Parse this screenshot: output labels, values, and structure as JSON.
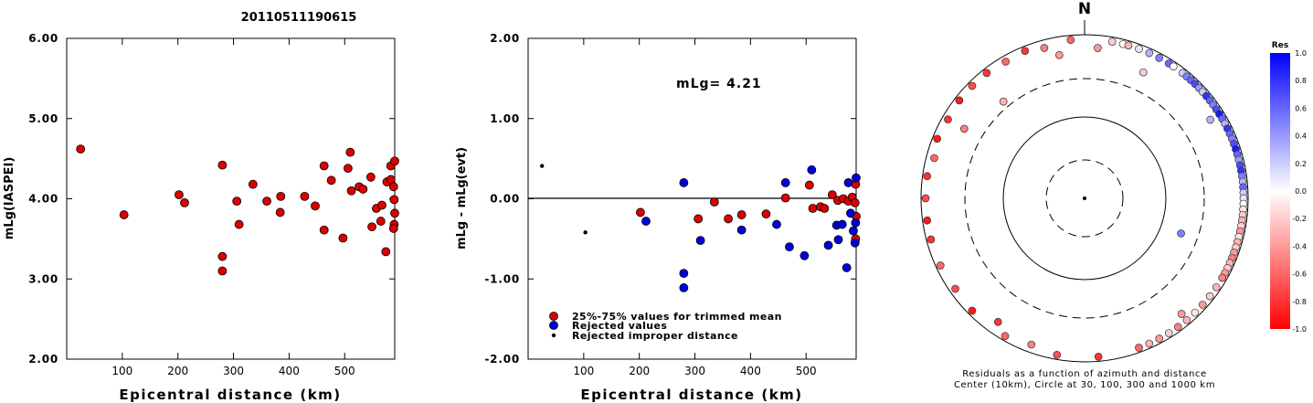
{
  "page_title": "20110511190615",
  "chart_data": [
    {
      "type": "scatter",
      "ylabel": "mLg(IASPEI)",
      "xlabel": "Epicentral distance (km)",
      "xlim": [
        0,
        590
      ],
      "ylim": [
        2.0,
        6.0
      ],
      "yticks": [
        "2.00",
        "3.00",
        "4.00",
        "5.00",
        "6.00"
      ],
      "xticks": [
        "100",
        "200",
        "300",
        "400",
        "500"
      ],
      "grid": false,
      "series": [
        {
          "color": "#dd0000",
          "points": [
            [
              25,
              4.62
            ],
            [
              103,
              3.8
            ],
            [
              202,
              4.05
            ],
            [
              212,
              3.95
            ],
            [
              280,
              4.42
            ],
            [
              280,
              3.28
            ],
            [
              280,
              3.1
            ],
            [
              306,
              3.97
            ],
            [
              310,
              3.68
            ],
            [
              335,
              4.18
            ],
            [
              360,
              3.97
            ],
            [
              385,
              4.03
            ],
            [
              384,
              3.83
            ],
            [
              428,
              4.03
            ],
            [
              447,
              3.91
            ],
            [
              463,
              4.41
            ],
            [
              463,
              3.61
            ],
            [
              476,
              4.23
            ],
            [
              497,
              3.51
            ],
            [
              506,
              4.38
            ],
            [
              510,
              4.58
            ],
            [
              512,
              4.1
            ],
            [
              526,
              4.15
            ],
            [
              533,
              4.12
            ],
            [
              547,
              4.27
            ],
            [
              549,
              3.65
            ],
            [
              557,
              3.88
            ],
            [
              565,
              3.72
            ],
            [
              567,
              3.92
            ],
            [
              574,
              3.34
            ],
            [
              576,
              4.21
            ],
            [
              583,
              4.41
            ],
            [
              583,
              4.24
            ],
            [
              588,
              4.15
            ],
            [
              589,
              3.99
            ],
            [
              589,
              3.68
            ],
            [
              591,
              4.47
            ],
            [
              590,
              3.82
            ],
            [
              588,
              3.63
            ]
          ]
        }
      ]
    },
    {
      "type": "scatter",
      "ylabel": "mLg - mLg(evt)",
      "xlabel": "Epicentral distance (km)",
      "annotation": "mLg= 4.21",
      "xlim": [
        0,
        590
      ],
      "ylim": [
        -2.0,
        2.0
      ],
      "yticks": [
        "-2.00",
        "-1.00",
        "0.00",
        "1.00",
        "2.00"
      ],
      "xticks": [
        "100",
        "200",
        "300",
        "400",
        "500"
      ],
      "zero_line": true,
      "legend": {
        "placement": "bottom-left",
        "entries": [
          {
            "label": "25%-75% values for trimmed mean",
            "color": "#dd0000",
            "marker": "circle"
          },
          {
            "label": "Rejected values",
            "color": "#0000dd",
            "marker": "circle"
          },
          {
            "label": "Rejected improper distance",
            "color": "#000000",
            "marker": "dot"
          }
        ]
      },
      "series": [
        {
          "name": "25%-75% values for trimmed mean",
          "color": "#dd0000",
          "points": [
            [
              202,
              -0.17
            ],
            [
              306,
              -0.25
            ],
            [
              335,
              -0.04
            ],
            [
              360,
              -0.25
            ],
            [
              384,
              -0.2
            ],
            [
              428,
              -0.19
            ],
            [
              463,
              0.01
            ],
            [
              506,
              0.17
            ],
            [
              512,
              -0.12
            ],
            [
              526,
              -0.1
            ],
            [
              533,
              -0.12
            ],
            [
              547,
              0.05
            ],
            [
              557,
              -0.02
            ],
            [
              567,
              0.0
            ],
            [
              576,
              -0.03
            ],
            [
              583,
              0.02
            ],
            [
              588,
              -0.05
            ],
            [
              589,
              0.18
            ],
            [
              590,
              -0.22
            ],
            [
              589,
              -0.5
            ]
          ]
        },
        {
          "name": "Rejected values",
          "color": "#0000dd",
          "points": [
            [
              212,
              -0.28
            ],
            [
              280,
              0.2
            ],
            [
              280,
              -0.93
            ],
            [
              280,
              -1.11
            ],
            [
              310,
              -0.52
            ],
            [
              384,
              -0.39
            ],
            [
              447,
              -0.32
            ],
            [
              463,
              0.2
            ],
            [
              470,
              -0.6
            ],
            [
              497,
              -0.71
            ],
            [
              510,
              0.36
            ],
            [
              540,
              -0.58
            ],
            [
              555,
              -0.33
            ],
            [
              558,
              -0.51
            ],
            [
              565,
              -0.32
            ],
            [
              573,
              -0.86
            ],
            [
              576,
              0.2
            ],
            [
              580,
              -0.18
            ],
            [
              585,
              -0.4
            ],
            [
              588,
              -0.55
            ],
            [
              590,
              0.26
            ],
            [
              589,
              -0.3
            ]
          ]
        },
        {
          "name": "Rejected improper distance",
          "color": "#000000",
          "points": [
            [
              25,
              0.41
            ],
            [
              103,
              -0.42
            ]
          ]
        }
      ]
    },
    {
      "type": "polar_scatter",
      "north_label": "N",
      "caption_line1": "Residuals as a function of azimuth and distance",
      "caption_line2": "Center (10km), Circle at 30, 100, 300 and 1000 km",
      "circles_km": [
        30,
        100,
        300,
        1000
      ],
      "colorbar": {
        "title": "Res",
        "range": [
          -1.0,
          1.0
        ],
        "labels": [
          "1.0",
          "0.8",
          "0.6",
          "0.4",
          "0.2",
          "0.0",
          "-0.2",
          "-0.4",
          "-0.6",
          "-0.8",
          "-1.0"
        ]
      },
      "points": [
        [
          10,
          1050,
          -0.2
        ],
        [
          14,
          1050,
          0.0
        ],
        [
          16,
          1060,
          -0.3
        ],
        [
          20,
          1050,
          0.1
        ],
        [
          24,
          1050,
          0.3
        ],
        [
          28,
          1040,
          0.5
        ],
        [
          32,
          1040,
          0.6
        ],
        [
          34,
          1050,
          0.0
        ],
        [
          38,
          1050,
          0.2
        ],
        [
          40,
          1050,
          0.5
        ],
        [
          42,
          1040,
          0.6
        ],
        [
          44,
          1050,
          0.7
        ],
        [
          46,
          1040,
          0.4
        ],
        [
          48,
          1050,
          0.2
        ],
        [
          50,
          1050,
          0.8
        ],
        [
          52,
          1040,
          0.6
        ],
        [
          54,
          1050,
          0.5
        ],
        [
          56,
          1050,
          0.7
        ],
        [
          58,
          1040,
          0.9
        ],
        [
          60,
          1050,
          0.6
        ],
        [
          62,
          1040,
          0.3
        ],
        [
          64,
          1050,
          0.8
        ],
        [
          66,
          1040,
          0.6
        ],
        [
          68,
          1050,
          0.5
        ],
        [
          70,
          1040,
          0.7
        ],
        [
          72,
          1050,
          0.9
        ],
        [
          74,
          1050,
          0.6
        ],
        [
          76,
          1040,
          0.4
        ],
        [
          78,
          1050,
          0.7
        ],
        [
          80,
          1050,
          0.8
        ],
        [
          82,
          1040,
          0.5
        ],
        [
          84,
          1050,
          0.3
        ],
        [
          86,
          1040,
          0.6
        ],
        [
          88,
          1050,
          0.2
        ],
        [
          90,
          1050,
          0.1
        ],
        [
          92,
          1040,
          0.0
        ],
        [
          94,
          1050,
          -0.1
        ],
        [
          96,
          1050,
          -0.2
        ],
        [
          98,
          1040,
          -0.3
        ],
        [
          100,
          1050,
          -0.2
        ],
        [
          102,
          1040,
          -0.4
        ],
        [
          104,
          1050,
          -0.1
        ],
        [
          106,
          1050,
          -0.3
        ],
        [
          108,
          1040,
          -0.2
        ],
        [
          110,
          1050,
          -0.4
        ],
        [
          112,
          1040,
          -0.5
        ],
        [
          114,
          1050,
          -0.3
        ],
        [
          116,
          1050,
          -0.2
        ],
        [
          118,
          1040,
          -0.4
        ],
        [
          120,
          1050,
          -0.5
        ],
        [
          124,
          1040,
          -0.3
        ],
        [
          128,
          1050,
          -0.2
        ],
        [
          132,
          1040,
          -0.4
        ],
        [
          136,
          1050,
          -0.1
        ],
        [
          140,
          1040,
          -0.3
        ],
        [
          144,
          1050,
          -0.5
        ],
        [
          148,
          1040,
          -0.2
        ],
        [
          152,
          1050,
          -0.4
        ],
        [
          156,
          1040,
          -0.3
        ],
        [
          160,
          1050,
          -0.6
        ],
        [
          175,
          1040,
          -0.8
        ],
        [
          190,
          1000,
          -0.7
        ],
        [
          200,
          800,
          -0.5
        ],
        [
          210,
          950,
          -0.6
        ],
        [
          215,
          700,
          -0.8
        ],
        [
          225,
          900,
          -0.9
        ],
        [
          235,
          850,
          -0.7
        ],
        [
          245,
          1000,
          -0.6
        ],
        [
          255,
          900,
          -0.8
        ],
        [
          262,
          1040,
          -0.9
        ],
        [
          270,
          950,
          -0.7
        ],
        [
          278,
          1050,
          -0.8
        ],
        [
          285,
          800,
          -0.6
        ],
        [
          292,
          1000,
          -0.9
        ],
        [
          300,
          850,
          -0.8
        ],
        [
          308,
          950,
          -0.9
        ],
        [
          315,
          900,
          -0.7
        ],
        [
          322,
          1000,
          -0.8
        ],
        [
          330,
          850,
          -0.6
        ],
        [
          338,
          950,
          -0.8
        ],
        [
          345,
          800,
          -0.5
        ],
        [
          350,
          600,
          -0.4
        ],
        [
          355,
          900,
          -0.6
        ],
        [
          5,
          700,
          -0.4
        ],
        [
          25,
          500,
          -0.2
        ],
        [
          58,
          650,
          0.3
        ],
        [
          110,
          180,
          0.5
        ],
        [
          300,
          500,
          -0.5
        ],
        [
          320,
          350,
          -0.3
        ],
        [
          140,
          700,
          -0.4
        ]
      ]
    }
  ]
}
